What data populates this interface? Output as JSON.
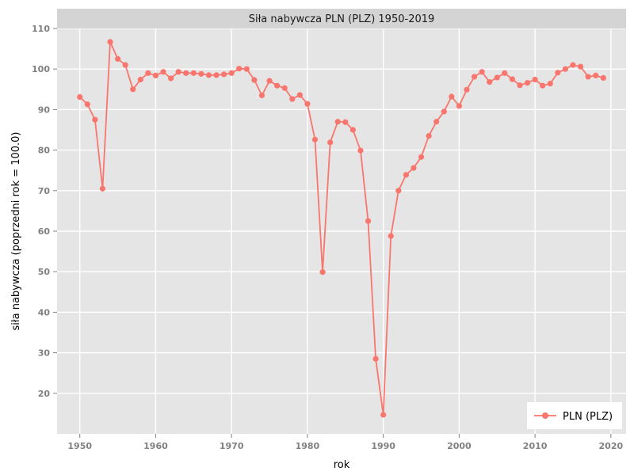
{
  "chart_data": {
    "type": "line",
    "title": "Siła nabywcza PLN (PLZ) 1950-2019",
    "xlabel": "rok",
    "ylabel": "siła nabywcza (poprzedni rok = 100.0)",
    "xlim": [
      1947,
      2022
    ],
    "ylim": [
      10,
      110
    ],
    "xticks": [
      1950,
      1960,
      1970,
      1980,
      1990,
      2000,
      2010,
      2020
    ],
    "yticks": [
      20,
      30,
      40,
      50,
      60,
      70,
      80,
      90,
      100,
      110
    ],
    "grid": true,
    "legend_position": "bottom-right",
    "series": [
      {
        "name": "PLN (PLZ)",
        "color": "#f8766d",
        "x": [
          1950,
          1951,
          1952,
          1953,
          1954,
          1955,
          1956,
          1957,
          1958,
          1959,
          1960,
          1961,
          1962,
          1963,
          1964,
          1965,
          1966,
          1967,
          1968,
          1969,
          1970,
          1971,
          1972,
          1973,
          1974,
          1975,
          1976,
          1977,
          1978,
          1979,
          1980,
          1981,
          1982,
          1983,
          1984,
          1985,
          1986,
          1987,
          1988,
          1989,
          1990,
          1991,
          1992,
          1993,
          1994,
          1995,
          1996,
          1997,
          1998,
          1999,
          2000,
          2001,
          2002,
          2003,
          2004,
          2005,
          2006,
          2007,
          2008,
          2009,
          2010,
          2011,
          2012,
          2013,
          2014,
          2015,
          2016,
          2017,
          2018,
          2019
        ],
        "y": [
          93.1,
          91.3,
          87.5,
          70.5,
          106.7,
          102.5,
          101.0,
          95.0,
          97.4,
          99.0,
          98.4,
          99.3,
          97.7,
          99.3,
          99.0,
          99.0,
          98.8,
          98.5,
          98.5,
          98.7,
          99.0,
          100.1,
          100.0,
          97.3,
          93.5,
          97.1,
          95.9,
          95.3,
          92.6,
          93.6,
          91.4,
          82.6,
          49.9,
          81.9,
          87.0,
          86.9,
          85.0,
          79.9,
          62.5,
          28.5,
          14.7,
          58.8,
          70.0,
          73.9,
          75.6,
          78.3,
          83.5,
          87.0,
          89.5,
          93.2,
          90.9,
          94.9,
          98.1,
          99.3,
          96.8,
          97.9,
          99.0,
          97.5,
          96.0,
          96.6,
          97.4,
          95.9,
          96.4,
          99.1,
          100.0,
          101.0,
          100.6,
          98.1,
          98.4,
          97.8
        ]
      }
    ]
  }
}
